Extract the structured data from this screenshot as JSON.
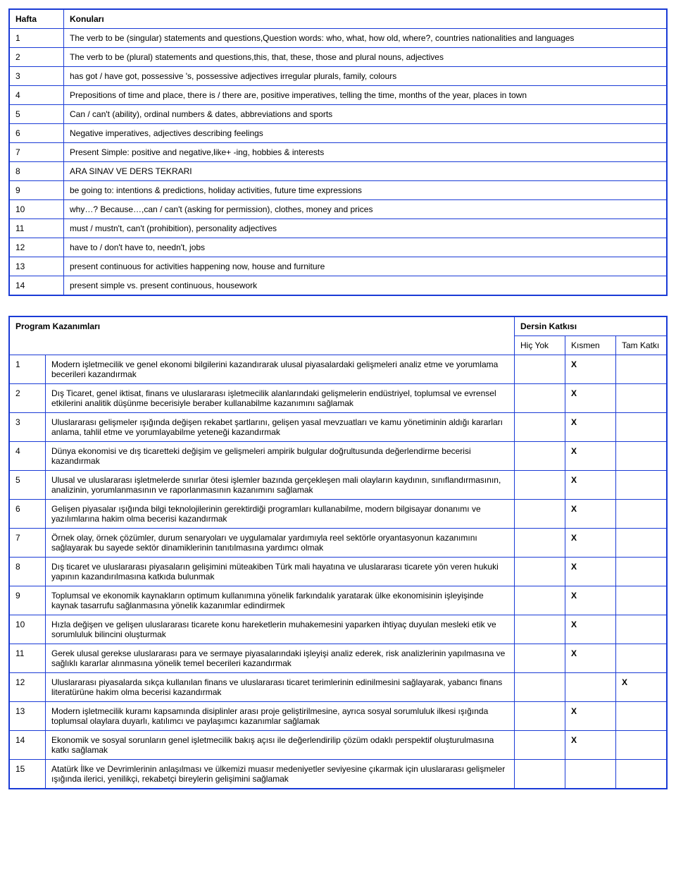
{
  "weeks_table": {
    "header_week": "Hafta",
    "header_topic": "Konuları",
    "rows": [
      {
        "n": "1",
        "t": "The verb to be (singular) statements and questions,Question words: who, what, how old, where?, countries nationalities and languages"
      },
      {
        "n": "2",
        "t": "The verb to be (plural) statements and questions,this, that, these, those and plural nouns, adjectives"
      },
      {
        "n": "3",
        "t": "has got / have got, possessive 's, possessive adjectives irregular plurals, family, colours"
      },
      {
        "n": "4",
        "t": "Prepositions of time and place, there is / there are, positive imperatives, telling the time, months of the year, places in town"
      },
      {
        "n": "5",
        "t": "Can / can't (ability), ordinal numbers & dates, abbreviations and sports"
      },
      {
        "n": "6",
        "t": "Negative imperatives, adjectives describing feelings"
      },
      {
        "n": "7",
        "t": "Present Simple: positive and negative,like+ -ing, hobbies & interests"
      },
      {
        "n": "8",
        "t": "ARA SINAV VE DERS TEKRARI"
      },
      {
        "n": "9",
        "t": "be going to: intentions & predictions, holiday activities, future time expressions"
      },
      {
        "n": "10",
        "t": "why…? Because…,can / can't (asking for permission), clothes, money and prices"
      },
      {
        "n": "11",
        "t": "must / mustn't, can't (prohibition), personality adjectives"
      },
      {
        "n": "12",
        "t": "have to / don't have to, needn't, jobs"
      },
      {
        "n": "13",
        "t": "present continuous for activities happening now, house and furniture"
      },
      {
        "n": "14",
        "t": "present simple vs. present continuous, housework"
      }
    ]
  },
  "pk_table": {
    "header_pk": "Program Kazanımları",
    "header_dk": "Dersin Katkısı",
    "col_hic": "Hiç Yok",
    "col_kismen": "Kısmen",
    "col_tam": "Tam Katkı",
    "rows": [
      {
        "n": "1",
        "t": "Modern işletmecilik ve genel ekonomi bilgilerini kazandırarak ulusal piyasalardaki gelişmeleri analiz etme ve yorumlama becerileri kazandırmak",
        "hic": "",
        "kis": "X",
        "tam": ""
      },
      {
        "n": "2",
        "t": "Dış Ticaret, genel iktisat, finans ve uluslararası işletmecilik alanlarındaki gelişmelerin endüstriyel, toplumsal ve evrensel etkilerini analitik düşünme becerisiyle beraber kullanabilme kazanımını sağlamak",
        "hic": "",
        "kis": "X",
        "tam": ""
      },
      {
        "n": "3",
        "t": "Uluslararası gelişmeler ışığında değişen rekabet şartlarını, gelişen yasal mevzuatları ve kamu yönetiminin aldığı kararları anlama, tahlil etme ve yorumlayabilme yeteneği kazandırmak",
        "hic": "",
        "kis": "X",
        "tam": ""
      },
      {
        "n": "4",
        "t": "Dünya ekonomisi ve dış ticaretteki değişim ve gelişmeleri ampirik bulgular doğrultusunda değerlendirme becerisi kazandırmak",
        "hic": "",
        "kis": "X",
        "tam": ""
      },
      {
        "n": "5",
        "t": "Ulusal ve uluslararası işletmelerde sınırlar ötesi işlemler bazında  gerçekleşen mali olayların kaydının, sınıflandırmasının, analizinin, yorumlanmasının ve raporlanmasının kazanımını sağlamak",
        "hic": "",
        "kis": "X",
        "tam": ""
      },
      {
        "n": "6",
        "t": "Gelişen piyasalar ışığında bilgi teknolojilerinin gerektirdiği programları kullanabilme, modern bilgisayar donanımı ve yazılımlarına hakim olma becerisi kazandırmak",
        "hic": "",
        "kis": "X",
        "tam": ""
      },
      {
        "n": "7",
        "t": "Örnek olay, örnek çözümler, durum senaryoları ve uygulamalar yardımıyla reel sektörle oryantasyonun kazanımını sağlayarak bu sayede sektör dinamiklerinin tanıtılmasına yardımcı olmak",
        "hic": "",
        "kis": "X",
        "tam": ""
      },
      {
        "n": "8",
        "t": "Dış ticaret ve uluslararası piyasaların gelişimini müteakiben Türk mali hayatına ve uluslararası ticarete yön veren hukuki yapının kazandırılmasına katkıda bulunmak",
        "hic": "",
        "kis": "X",
        "tam": ""
      },
      {
        "n": "9",
        "t": "Toplumsal ve ekonomik kaynakların optimum kullanımına yönelik farkındalık yaratarak ülke ekonomisinin işleyişinde kaynak tasarrufu sağlanmasına yönelik kazanımlar edindirmek",
        "hic": "",
        "kis": "X",
        "tam": ""
      },
      {
        "n": "10",
        "t": "Hızla değişen ve gelişen uluslararası ticarete konu hareketlerin muhakemesini yaparken ihtiyaç duyulan mesleki etik ve sorumluluk bilincini oluşturmak",
        "hic": "",
        "kis": "X",
        "tam": ""
      },
      {
        "n": "11",
        "t": "Gerek ulusal gerekse uluslararası para ve sermaye piyasalarındaki işleyişi analiz ederek, risk analizlerinin yapılmasına ve sağlıklı kararlar alınmasına yönelik temel becerileri kazandırmak",
        "hic": "",
        "kis": "X",
        "tam": ""
      },
      {
        "n": "12",
        "t": "Uluslararası piyasalarda sıkça kullanılan finans ve uluslararası ticaret terimlerinin edinilmesini sağlayarak, yabancı finans literatürüne hakim olma becerisi kazandırmak",
        "hic": "",
        "kis": "",
        "tam": "X"
      },
      {
        "n": "13",
        "t": "Modern işletmecilik kuramı kapsamında disiplinler arası proje geliştirilmesine, ayrıca sosyal sorumluluk ilkesi ışığında toplumsal olaylara duyarlı, katılımcı ve paylaşımcı kazanımlar sağlamak",
        "hic": "",
        "kis": "X",
        "tam": ""
      },
      {
        "n": "14",
        "t": "Ekonomik ve sosyal sorunların genel işletmecilik bakış açısı ile değerlendirilip çözüm odaklı perspektif oluşturulmasına katkı sağlamak",
        "hic": "",
        "kis": "X",
        "tam": ""
      },
      {
        "n": "15",
        "t": "Atatürk İlke ve Devrimlerinin anlaşılması ve ülkemizi muasır medeniyetler seviyesine çıkarmak için uluslararası gelişmeler ışığında ilerici, yenilikçi, rekabetçi bireylerin gelişimini sağlamak",
        "hic": "",
        "kis": "",
        "tam": ""
      }
    ]
  }
}
